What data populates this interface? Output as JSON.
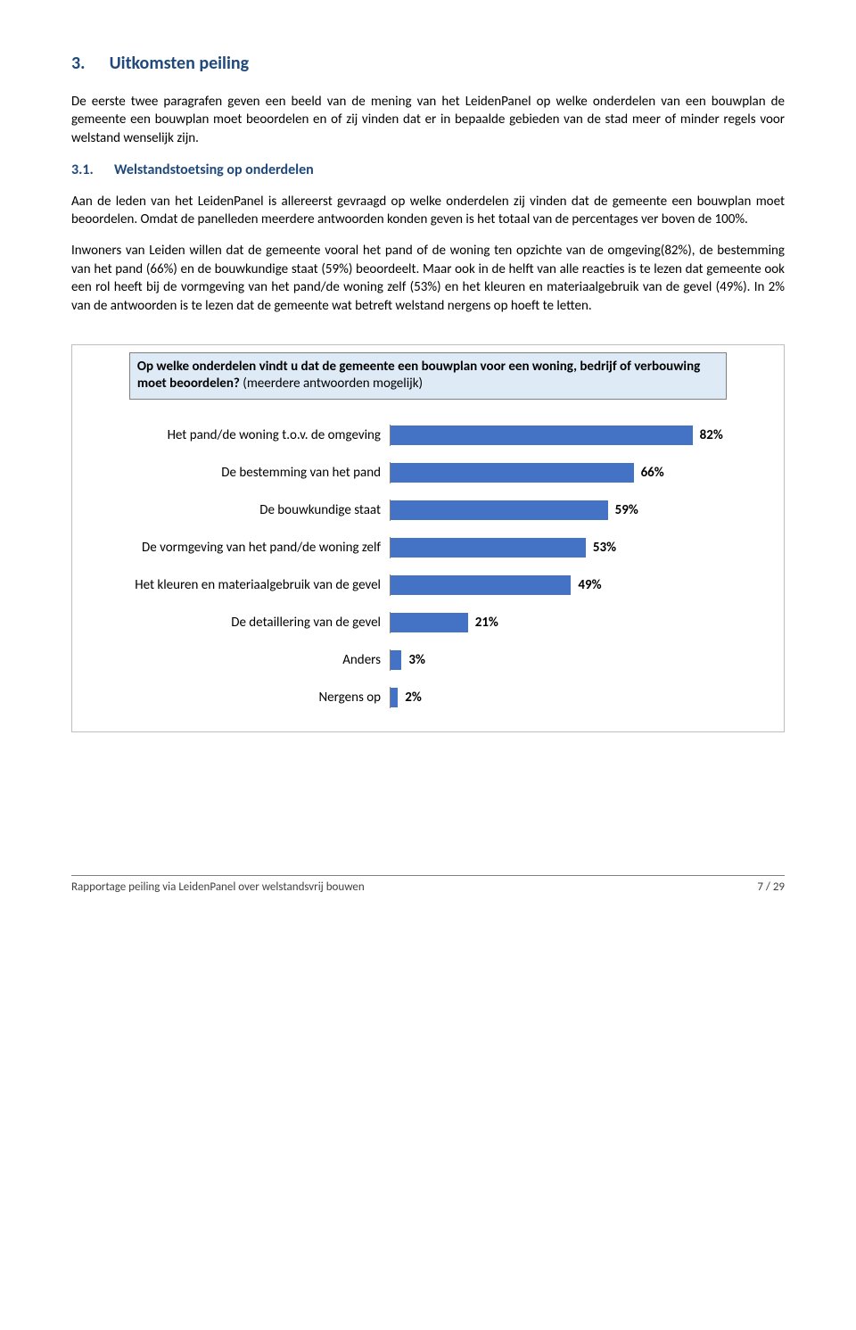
{
  "heading1_num": "3.",
  "heading1_txt": "Uitkomsten peiling",
  "para1": "De eerste twee paragrafen geven een beeld van de mening van het LeidenPanel op welke onderdelen van een bouwplan de gemeente een bouwplan moet beoordelen en of zij vinden dat er in bepaalde gebieden van de stad meer of minder regels voor welstand wenselijk zijn.",
  "heading2_num": "3.1.",
  "heading2_txt": "Welstandstoetsing op onderdelen",
  "para2": "Aan de leden van het LeidenPanel is allereerst gevraagd op welke onderdelen zij vinden dat de gemeente een bouwplan moet beoordelen. Omdat de panelleden meerdere antwoorden konden geven is het totaal van de percentages ver boven de 100%.",
  "para3": "Inwoners van Leiden willen dat de gemeente vooral het pand of de woning ten opzichte van de omgeving(82%), de bestemming van het pand (66%) en de bouwkundige staat (59%) beoordeelt. Maar ook in de helft van alle reacties is te lezen dat gemeente ook een rol heeft bij de vormgeving van het pand/de woning zelf (53%) en het kleuren en materiaalgebruik van de gevel (49%). In 2% van de antwoorden is te lezen dat de gemeente wat betreft welstand nergens op hoeft te letten.",
  "chart": {
    "title_bold": "Op welke onderdelen vindt u dat de gemeente een bouwplan voor een woning, bedrijf of verbouwing moet beoordelen?",
    "title_rest": " (meerdere antwoorden mogelijk)",
    "bar_color": "#4472c4",
    "max": 100,
    "items": [
      {
        "label": "Het pand/de woning t.o.v. de omgeving",
        "value": 82,
        "display": "82%"
      },
      {
        "label": "De bestemming van het pand",
        "value": 66,
        "display": "66%"
      },
      {
        "label": "De bouwkundige staat",
        "value": 59,
        "display": "59%"
      },
      {
        "label": "De vormgeving van het pand/de woning zelf",
        "value": 53,
        "display": "53%"
      },
      {
        "label": "Het kleuren en materiaalgebruik van de gevel",
        "value": 49,
        "display": "49%"
      },
      {
        "label": "De detaillering van de gevel",
        "value": 21,
        "display": "21%"
      },
      {
        "label": "Anders",
        "value": 3,
        "display": "3%"
      },
      {
        "label": "Nergens op",
        "value": 2,
        "display": "2%"
      }
    ]
  },
  "footer_left": "Rapportage peiling via LeidenPanel over welstandsvrij bouwen",
  "footer_right": "7  / 29"
}
